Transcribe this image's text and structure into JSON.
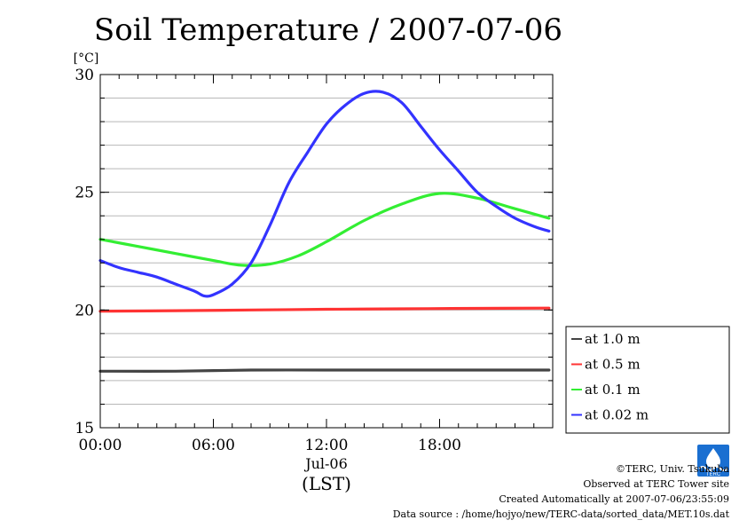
{
  "title": "Soil Temperature / 2007-07-06",
  "chart_data": {
    "type": "line",
    "title": "Soil Temperature / 2007-07-06",
    "ylabel": "[°C]",
    "xlabel": "Jul-06",
    "xlabel2": "(LST)",
    "xlim": [
      0,
      24
    ],
    "ylim": [
      15,
      30
    ],
    "x_ticks": [
      0,
      6,
      12,
      18
    ],
    "x_tick_labels": [
      "00:00",
      "06:00",
      "12:00",
      "18:00"
    ],
    "y_ticks": [
      15,
      20,
      25,
      30
    ],
    "y_tick_labels": [
      "15",
      "20",
      "25",
      "30"
    ],
    "y_minor_step": 1,
    "grid": true,
    "legend_position": "bottom-right, outside plot",
    "series": [
      {
        "name": "at 1.0 m",
        "color": "#444444",
        "x": [
          0,
          4,
          8,
          12,
          16,
          20,
          23.8
        ],
        "values": [
          17.4,
          17.4,
          17.45,
          17.45,
          17.45,
          17.45,
          17.45
        ]
      },
      {
        "name": "at 0.5 m",
        "color": "#ff3333",
        "x": [
          0,
          4,
          8,
          12,
          16,
          20,
          23.8
        ],
        "values": [
          19.95,
          19.97,
          20.0,
          20.03,
          20.05,
          20.07,
          20.08
        ]
      },
      {
        "name": "at 0.1 m",
        "color": "#33ee33",
        "x": [
          0,
          2,
          4,
          6,
          7.5,
          9,
          10.5,
          12,
          14,
          16,
          18,
          20,
          22,
          23.8
        ],
        "values": [
          23.0,
          22.7,
          22.4,
          22.1,
          21.9,
          21.95,
          22.3,
          22.9,
          23.8,
          24.5,
          24.95,
          24.75,
          24.3,
          23.9
        ]
      },
      {
        "name": "at 0.02 m",
        "color": "#3333ff",
        "x": [
          0,
          1,
          2,
          3,
          4,
          5,
          5.5,
          6,
          7,
          8,
          9,
          10,
          11,
          12,
          13,
          14,
          15,
          16,
          17,
          18,
          19,
          20,
          21,
          22,
          23,
          23.8
        ],
        "values": [
          22.1,
          21.8,
          21.6,
          21.4,
          21.1,
          20.8,
          20.6,
          20.65,
          21.1,
          22.0,
          23.6,
          25.4,
          26.7,
          27.9,
          28.7,
          29.2,
          29.25,
          28.8,
          27.8,
          26.8,
          25.9,
          25.0,
          24.4,
          23.9,
          23.55,
          23.35
        ]
      }
    ]
  },
  "credits": {
    "copyright": "©TERC, Univ. Tsukuba",
    "site": "Observed at TERC Tower site",
    "created": "Created Automatically at 2007-07-06/23:55:09",
    "source": "Data source : /home/hojyo/new/TERC-data/sorted_data/MET.10s.dat"
  },
  "logo": {
    "icon": "terc-logo-icon",
    "text": "TERC",
    "color": "#1a6fd1"
  }
}
